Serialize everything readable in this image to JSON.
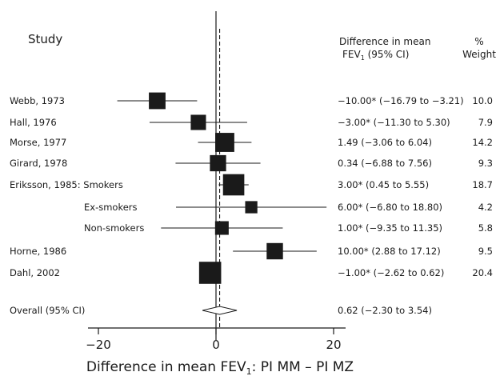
{
  "chart_data": {
    "type": "forest",
    "headers": {
      "study": "Study",
      "effect_line1": "Difference in mean",
      "effect_line2_prefix": "FEV",
      "effect_line2_sub": "1",
      "effect_line2_suffix": " (95% CI)",
      "weight_line1": "%",
      "weight_line2": "Weight"
    },
    "xlabel_prefix": "Difference in mean FEV",
    "xlabel_sub": "1",
    "xlabel_suffix": ": PI MM – PI MZ",
    "xlim": [
      -22,
      22
    ],
    "xticks": [
      -20,
      0,
      20
    ],
    "xtick_labels": [
      "−20",
      "0",
      "20"
    ],
    "reference_line": 0,
    "pooled_line": 0.62,
    "studies": [
      {
        "label": "Webb, 1973",
        "sublabel": "",
        "mean": -10.0,
        "lower": -16.79,
        "upper": -3.21,
        "ci_text": "−10.00* (−16.79 to −3.21)",
        "weight": 10.0,
        "weight_text": "10.0"
      },
      {
        "label": "Hall, 1976",
        "sublabel": "",
        "mean": -3.0,
        "lower": -11.3,
        "upper": 5.3,
        "ci_text": "−3.00* (−11.30 to 5.30)",
        "weight": 7.9,
        "weight_text": "7.9"
      },
      {
        "label": "Morse, 1977",
        "sublabel": "",
        "mean": 1.49,
        "lower": -3.06,
        "upper": 6.04,
        "ci_text": "1.49 (−3.06 to 6.04)",
        "weight": 14.2,
        "weight_text": "14.2"
      },
      {
        "label": "Girard, 1978",
        "sublabel": "",
        "mean": 0.34,
        "lower": -6.88,
        "upper": 7.56,
        "ci_text": "0.34 (−6.88 to 7.56)",
        "weight": 9.3,
        "weight_text": "9.3"
      },
      {
        "label": "Eriksson, 1985: Smokers",
        "sublabel": "",
        "mean": 3.0,
        "lower": 0.45,
        "upper": 5.55,
        "ci_text": "3.00* (0.45 to 5.55)",
        "weight": 18.7,
        "weight_text": "18.7"
      },
      {
        "label": "",
        "sublabel": "Ex-smokers",
        "mean": 6.0,
        "lower": -6.8,
        "upper": 18.8,
        "ci_text": "6.00* (−6.80 to 18.80)",
        "weight": 4.2,
        "weight_text": "4.2"
      },
      {
        "label": "",
        "sublabel": "Non-smokers",
        "mean": 1.0,
        "lower": -9.35,
        "upper": 11.35,
        "ci_text": "1.00* (−9.35 to 11.35)",
        "weight": 5.8,
        "weight_text": "5.8"
      },
      {
        "label": "Horne, 1986",
        "sublabel": "",
        "mean": 10.0,
        "lower": 2.88,
        "upper": 17.12,
        "ci_text": "10.00* (2.88 to 17.12)",
        "weight": 9.5,
        "weight_text": "9.5"
      },
      {
        "label": "Dahl, 2002",
        "sublabel": "",
        "mean": -1.0,
        "lower": -2.62,
        "upper": 0.62,
        "ci_text": "−1.00* (−2.62 to 0.62)",
        "weight": 20.4,
        "weight_text": "20.4"
      }
    ],
    "overall": {
      "label": "Overall (95% CI)",
      "mean": 0.62,
      "lower": -2.3,
      "upper": 3.54,
      "ci_text": "0.62 (−2.30 to 3.54)"
    },
    "colors": {
      "marker": "#1a1a1a",
      "line": "#1a1a1a",
      "background": "#ffffff"
    }
  }
}
